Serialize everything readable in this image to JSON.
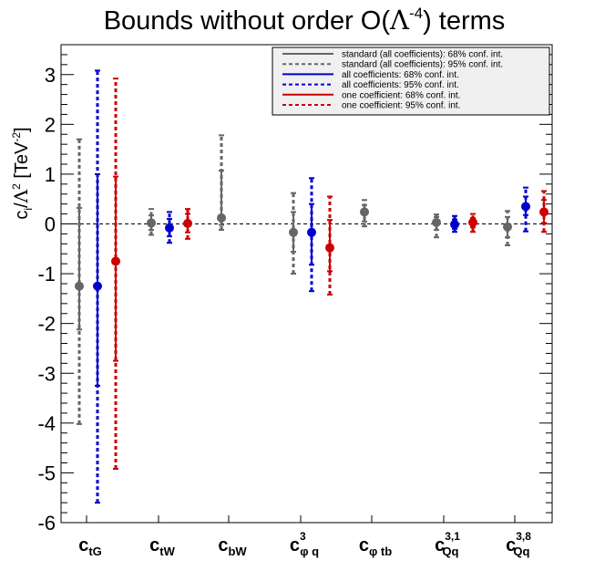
{
  "chart_data": {
    "type": "errorbar",
    "title": "Bounds without order O(Λ^-4) terms",
    "title_parts": {
      "main": "Bounds without order O(",
      "lambda": "Λ",
      "exp": "-4",
      "tail": ") terms"
    },
    "ylabel_parts": {
      "c": "c",
      "sub_i": "i",
      "slash": "/",
      "lambda": "Λ",
      "sup2": "2",
      "unit": " [TeV",
      "unit_exp": "-2",
      "close": "]"
    },
    "ylim": [
      -6,
      3.6
    ],
    "yticks": [
      "3",
      "2",
      "1",
      "0",
      "-1",
      "-2",
      "-3",
      "-4",
      "-5",
      "-6"
    ],
    "ytick_values": [
      3,
      2,
      1,
      0,
      -1,
      -2,
      -3,
      -4,
      -5,
      -6
    ],
    "categories": [
      {
        "base": "c",
        "sub": "tG",
        "sup": ""
      },
      {
        "base": "c",
        "sub": "tW",
        "sup": ""
      },
      {
        "base": "c",
        "sub": "bW",
        "sup": ""
      },
      {
        "base": "c",
        "sub": "φ q",
        "sup": "3"
      },
      {
        "base": "c",
        "sub": "φ tb",
        "sup": ""
      },
      {
        "base": "c",
        "sub": "Qq",
        "sup": "3,1"
      },
      {
        "base": "c",
        "sub": "Qq",
        "sup": "3,8"
      }
    ],
    "series": [
      {
        "name": "standard (all coefficients)",
        "color": "#666666",
        "points": [
          {
            "cat": 0,
            "center": -1.25,
            "ci68": [
              -2.12,
              0.32
            ],
            "ci95": [
              -4.02,
              1.7
            ]
          },
          {
            "cat": 1,
            "center": 0.02,
            "ci68": [
              -0.12,
              0.17
            ],
            "ci95": [
              -0.22,
              0.3
            ]
          },
          {
            "cat": 2,
            "center": 0.12,
            "ci68": [
              -0.02,
              1.07
            ],
            "ci95": [
              -0.12,
              1.78
            ]
          },
          {
            "cat": 3,
            "center": -0.17,
            "ci68": [
              -0.56,
              0.24
            ],
            "ci95": [
              -1.0,
              0.62
            ]
          },
          {
            "cat": 4,
            "center": 0.24,
            "ci68": [
              0.05,
              0.38
            ],
            "ci95": [
              -0.05,
              0.48
            ]
          },
          {
            "cat": 5,
            "center": 0.03,
            "ci68": [
              -0.12,
              0.14
            ],
            "ci95": [
              -0.27,
              0.19
            ]
          },
          {
            "cat": 6,
            "center": -0.06,
            "ci68": [
              -0.27,
              0.14
            ],
            "ci95": [
              -0.43,
              0.26
            ]
          }
        ]
      },
      {
        "name": "all coefficients",
        "color": "#0000cc",
        "points": [
          {
            "cat": 0,
            "center": -1.25,
            "ci68": [
              -3.25,
              1.0
            ],
            "ci95": [
              -5.6,
              3.08
            ]
          },
          {
            "cat": 1,
            "center": -0.08,
            "ci68": [
              -0.25,
              0.1
            ],
            "ci95": [
              -0.38,
              0.24
            ]
          },
          {
            "cat": 3,
            "center": -0.17,
            "ci68": [
              -0.82,
              0.4
            ],
            "ci95": [
              -1.35,
              0.92
            ]
          },
          {
            "cat": 5,
            "center": -0.01,
            "ci68": [
              -0.1,
              0.09
            ],
            "ci95": [
              -0.16,
              0.16
            ]
          },
          {
            "cat": 6,
            "center": 0.35,
            "ci68": [
              0.18,
              0.55
            ],
            "ci95": [
              -0.15,
              0.73
            ]
          }
        ]
      },
      {
        "name": "one coefficient",
        "color": "#cc0000",
        "points": [
          {
            "cat": 0,
            "center": -0.75,
            "ci68": [
              -2.75,
              0.95
            ],
            "ci95": [
              -4.92,
              2.92
            ]
          },
          {
            "cat": 1,
            "center": 0.01,
            "ci68": [
              -0.17,
              0.2
            ],
            "ci95": [
              -0.3,
              0.3
            ]
          },
          {
            "cat": 3,
            "center": -0.48,
            "ci68": [
              -0.95,
              0.08
            ],
            "ci95": [
              -1.42,
              0.55
            ]
          },
          {
            "cat": 5,
            "center": 0.03,
            "ci68": [
              -0.07,
              0.12
            ],
            "ci95": [
              -0.16,
              0.2
            ]
          },
          {
            "cat": 6,
            "center": 0.24,
            "ci68": [
              0.02,
              0.48
            ],
            "ci95": [
              -0.16,
              0.66
            ]
          }
        ]
      }
    ],
    "legend": {
      "position": "top-right",
      "entries": [
        {
          "label": "standard (all coefficients): 68% conf. int.",
          "color": "#666666",
          "style": "solid"
        },
        {
          "label": "standard (all coefficients): 95% conf. int.",
          "color": "#666666",
          "style": "dashed"
        },
        {
          "label": "all coefficients: 68% conf. int.",
          "color": "#0000cc",
          "style": "solid"
        },
        {
          "label": "all coefficients: 95% conf. int.",
          "color": "#0000cc",
          "style": "dashed"
        },
        {
          "label": "one coefficient: 68% conf. int.",
          "color": "#cc0000",
          "style": "solid"
        },
        {
          "label": "one coefficient: 95% conf. int.",
          "color": "#cc0000",
          "style": "dashed"
        }
      ]
    }
  }
}
